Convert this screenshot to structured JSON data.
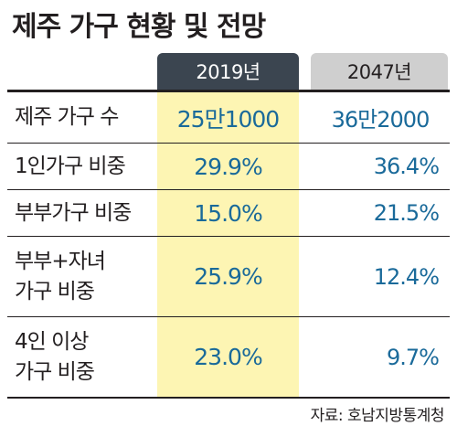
{
  "title": "제주 가구 현황 및 전망",
  "columns": [
    "2019년",
    "2047년"
  ],
  "rows": [
    {
      "label_lines": [
        "제주 가구 수"
      ],
      "v2019": "25만1000",
      "v2047": "36만2000"
    },
    {
      "label_lines": [
        "1인가구 비중"
      ],
      "v2019": "29.9%",
      "v2047": "36.4%"
    },
    {
      "label_lines": [
        "부부가구 비중"
      ],
      "v2019": "15.0%",
      "v2047": "21.5%"
    },
    {
      "label_lines": [
        "부부+자녀",
        "가구 비중"
      ],
      "v2019": "25.9%",
      "v2047": "12.4%"
    },
    {
      "label_lines": [
        "4인 이상",
        "가구 비중"
      ],
      "v2019": "23.0%",
      "v2047": "9.7%"
    }
  ],
  "source": "자료: 호남지방통계청",
  "colors": {
    "highlight_column": "#fdf5b3",
    "header_2019": "#3b4550",
    "header_2047": "#cfcfcf",
    "value_text": "#1a6a9a"
  }
}
